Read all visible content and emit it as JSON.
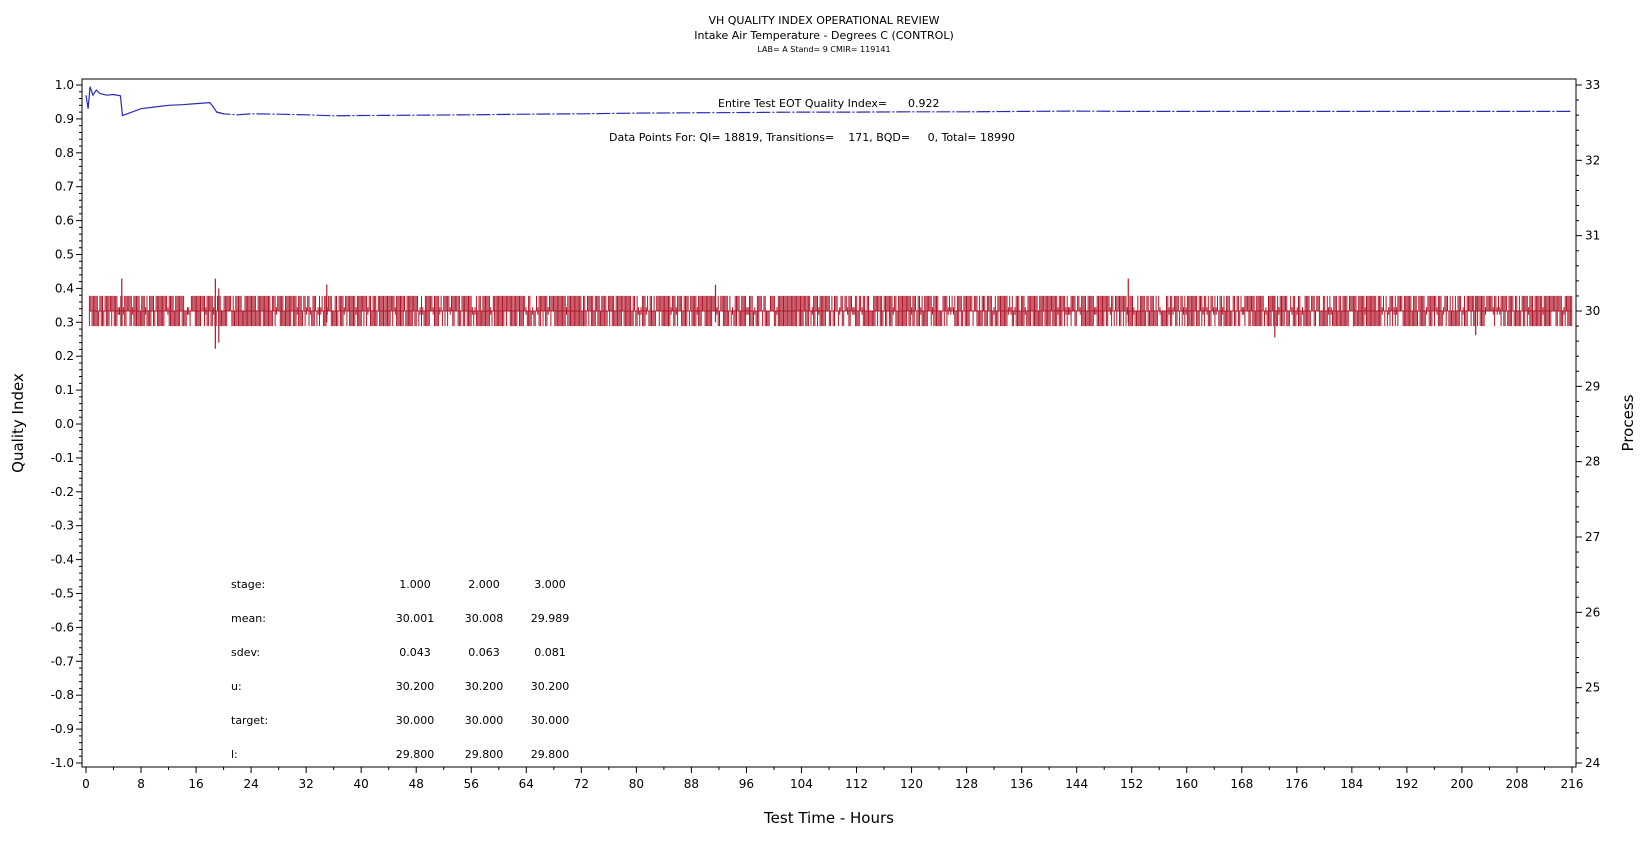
{
  "header": {
    "title": "VH QUALITY INDEX OPERATIONAL REVIEW",
    "subtitle": "Intake Air Temperature - Degrees C (CONTROL)",
    "info": "LAB= A Stand= 9 CMIR= 119141"
  },
  "annotations": {
    "eot_label": "Entire Test EOT Quality Index=",
    "eot_value": "0.922",
    "points_text": "Data Points For: QI= 18819, Transitions=    171, BQD=     0, Total= 18990"
  },
  "stats_table": {
    "row_labels": [
      "stage:",
      "mean:",
      "sdev:",
      "u:",
      "target:",
      "l:"
    ],
    "columns": [
      [
        "1.000",
        "30.001",
        "0.043",
        "30.200",
        "30.000",
        "29.800"
      ],
      [
        "2.000",
        "30.008",
        "0.063",
        "30.200",
        "30.000",
        "29.800"
      ],
      [
        "3.000",
        "29.989",
        "0.081",
        "30.200",
        "30.000",
        "29.800"
      ]
    ]
  },
  "colors": {
    "quality_index": "#2a2ab4",
    "process": "#b0182c",
    "axes": "#000000"
  },
  "chart_data": {
    "type": "line",
    "title": "VH QUALITY INDEX OPERATIONAL REVIEW",
    "subtitle": "Intake Air Temperature - Degrees C (CONTROL)",
    "xlabel": "Test Time - Hours",
    "ylabel": "Quality Index",
    "y2label": "Process",
    "xlim": [
      0,
      216
    ],
    "ylim": [
      -1.0,
      1.0
    ],
    "y2lim": [
      24,
      33
    ],
    "x_ticks": [
      "0",
      "8",
      "16",
      "24",
      "32",
      "40",
      "48",
      "56",
      "64",
      "72",
      "80",
      "88",
      "96",
      "104",
      "112",
      "120",
      "128",
      "136",
      "144",
      "152",
      "160",
      "168",
      "176",
      "184",
      "192",
      "200",
      "208",
      "216"
    ],
    "y_ticks": [
      "1.0",
      "0.9",
      "0.8",
      "0.7",
      "0.6",
      "0.5",
      "0.4",
      "0.3",
      "0.2",
      "0.1",
      "0.0",
      "-0.1",
      "-0.2",
      "-0.3",
      "-0.4",
      "-0.5",
      "-0.6",
      "-0.7",
      "-0.8",
      "-0.9",
      "-1.0"
    ],
    "y2_ticks": [
      "24",
      "25",
      "26",
      "27",
      "28",
      "29",
      "30",
      "31",
      "32",
      "33"
    ],
    "grid": false,
    "series": [
      {
        "axis": "left",
        "x": [
          0,
          0.3,
          0.6,
          1,
          1.5,
          2,
          3,
          4,
          5,
          5.3,
          6,
          8,
          10,
          12,
          14,
          16,
          18,
          18.5,
          19,
          20,
          22,
          24,
          28,
          32,
          36,
          40,
          48,
          56,
          64,
          72,
          80,
          88,
          96,
          104,
          112,
          120,
          128,
          136,
          144,
          152,
          160,
          168,
          176,
          184,
          192,
          200,
          208,
          216
        ],
        "values": [
          0.97,
          0.93,
          0.995,
          0.97,
          0.985,
          0.975,
          0.97,
          0.972,
          0.968,
          0.91,
          0.915,
          0.93,
          0.935,
          0.94,
          0.942,
          0.945,
          0.948,
          0.935,
          0.92,
          0.915,
          0.912,
          0.915,
          0.914,
          0.912,
          0.909,
          0.91,
          0.911,
          0.912,
          0.914,
          0.915,
          0.917,
          0.918,
          0.919,
          0.92,
          0.92,
          0.921,
          0.921,
          0.922,
          0.923,
          0.922,
          0.922,
          0.922,
          0.922,
          0.922,
          0.922,
          0.922,
          0.922,
          0.922
        ]
      },
      {
        "axis": "right",
        "x_range": [
          0,
          216
        ],
        "center": 30.0,
        "band": [
          29.8,
          30.2
        ],
        "spikes": [
          {
            "x": 5.2,
            "low": 29.8,
            "high": 30.43
          },
          {
            "x": 18.8,
            "low": 29.5,
            "high": 30.43
          },
          {
            "x": 19.3,
            "low": 29.58,
            "high": 30.3
          },
          {
            "x": 35,
            "low": 29.85,
            "high": 30.35
          },
          {
            "x": 91.5,
            "low": 29.85,
            "high": 30.35
          },
          {
            "x": 151.5,
            "low": 29.85,
            "high": 30.43
          },
          {
            "x": 172.8,
            "low": 29.65,
            "high": 30.2
          },
          {
            "x": 202,
            "low": 29.68,
            "high": 30.2
          }
        ]
      }
    ]
  }
}
